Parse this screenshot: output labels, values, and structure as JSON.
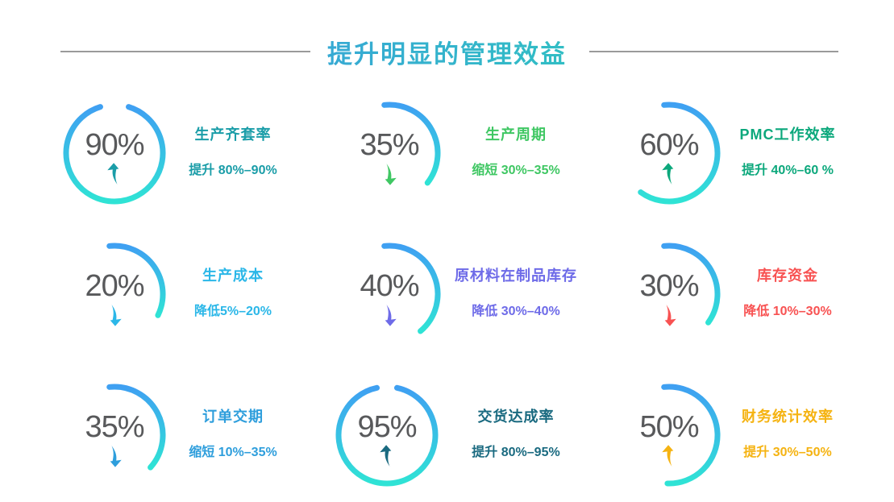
{
  "header": {
    "title": "提升明显的管理效益",
    "gradient": [
      "#3d8ee8",
      "#2bd9b0"
    ]
  },
  "ring_gradient": {
    "start": "#3fa0f2",
    "end": "#2fe3d5"
  },
  "percent_color": "#58595b",
  "items": [
    {
      "percent": "90%",
      "title": "生产齐套率",
      "subtitle": "提升 80%–90%",
      "color": "#1a9da8",
      "trend": "up",
      "arc_start": 17,
      "arc_sweep": 326
    },
    {
      "percent": "35%",
      "title": "生产周期",
      "subtitle": "缩短 30%–35%",
      "color": "#3fc763",
      "trend": "down",
      "arc_start": -6,
      "arc_sweep": 134
    },
    {
      "percent": "60%",
      "title": "PMC工作效率",
      "subtitle": "提升 40%–60 %",
      "color": "#0ca87c",
      "trend": "up",
      "arc_start": -6,
      "arc_sweep": 222
    },
    {
      "percent": "20%",
      "title": "生产成本",
      "subtitle": "降低5%–20%",
      "color": "#2bb7e8",
      "trend": "down",
      "arc_start": -6,
      "arc_sweep": 122
    },
    {
      "percent": "40%",
      "title": "原材料在制品库存",
      "subtitle": "降低 30%–40%",
      "color": "#6e6be8",
      "trend": "down",
      "arc_start": -6,
      "arc_sweep": 146
    },
    {
      "percent": "30%",
      "title": "库存资金",
      "subtitle": "降低 10%–30%",
      "color": "#f85252",
      "trend": "down",
      "arc_start": -6,
      "arc_sweep": 132
    },
    {
      "percent": "35%",
      "title": "订单交期",
      "subtitle": "缩短 10%–35%",
      "color": "#2e9edc",
      "trend": "down",
      "arc_start": -6,
      "arc_sweep": 138
    },
    {
      "percent": "95%",
      "title": "交货达成率",
      "subtitle": "提升 80%–95%",
      "color": "#1a6a80",
      "trend": "up",
      "arc_start": 12,
      "arc_sweep": 336
    },
    {
      "percent": "50%",
      "title": "财务统计效率",
      "subtitle": "提升 30%–50%",
      "color": "#f5b312",
      "trend": "up",
      "arc_start": -6,
      "arc_sweep": 188
    }
  ],
  "chart_data": [
    {
      "type": "pie",
      "label": "生产齐套率",
      "percent": 90,
      "range": "80%–90%",
      "direction": "up",
      "verb": "提升"
    },
    {
      "type": "pie",
      "label": "生产周期",
      "percent": 35,
      "range": "30%–35%",
      "direction": "down",
      "verb": "缩短"
    },
    {
      "type": "pie",
      "label": "PMC工作效率",
      "percent": 60,
      "range": "40%–60 %",
      "direction": "up",
      "verb": "提升"
    },
    {
      "type": "pie",
      "label": "生产成本",
      "percent": 20,
      "range": "5%–20%",
      "direction": "down",
      "verb": "降低"
    },
    {
      "type": "pie",
      "label": "原材料在制品库存",
      "percent": 40,
      "range": "30%–40%",
      "direction": "down",
      "verb": "降低"
    },
    {
      "type": "pie",
      "label": "库存资金",
      "percent": 30,
      "range": "10%–30%",
      "direction": "down",
      "verb": "降低"
    },
    {
      "type": "pie",
      "label": "订单交期",
      "percent": 35,
      "range": "10%–35%",
      "direction": "down",
      "verb": "缩短"
    },
    {
      "type": "pie",
      "label": "交货达成率",
      "percent": 95,
      "range": "80%–95%",
      "direction": "up",
      "verb": "提升"
    },
    {
      "type": "pie",
      "label": "财务统计效率",
      "percent": 50,
      "range": "30%–50%",
      "direction": "up",
      "verb": "提升"
    }
  ]
}
